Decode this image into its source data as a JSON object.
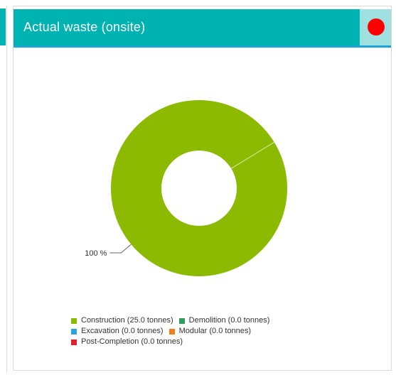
{
  "widget": {
    "title": "Actual waste (onsite)",
    "status_color": "#ff0000",
    "header_color": "#00b3b3"
  },
  "chart_data": {
    "type": "pie",
    "donut": true,
    "slices": [
      {
        "name": "Construction",
        "value": 25.0,
        "color": "#8cba00"
      },
      {
        "name": "Demolition",
        "value": 0.0,
        "color": "#2e9e5b"
      },
      {
        "name": "Excavation",
        "value": 0.0,
        "color": "#2ba3d9"
      },
      {
        "name": "Modular",
        "value": 0.0,
        "color": "#f27c1a"
      },
      {
        "name": "Post-Completion",
        "value": 0.0,
        "color": "#e0202a"
      }
    ],
    "data_labels": [
      "100 %"
    ],
    "legend": {
      "position": "bottom",
      "rows": [
        [
          {
            "label": "Construction (25.0 tonnes)",
            "color": "#8cba00"
          },
          {
            "label": "Demolition (0.0 tonnes)",
            "color": "#2e9e5b"
          }
        ],
        [
          {
            "label": "Excavation (0.0 tonnes)",
            "color": "#2ba3d9"
          },
          {
            "label": "Modular (0.0 tonnes)",
            "color": "#f27c1a"
          }
        ],
        [
          {
            "label": "Post-Completion (0.0 tonnes)",
            "color": "#e0202a"
          }
        ]
      ]
    }
  }
}
